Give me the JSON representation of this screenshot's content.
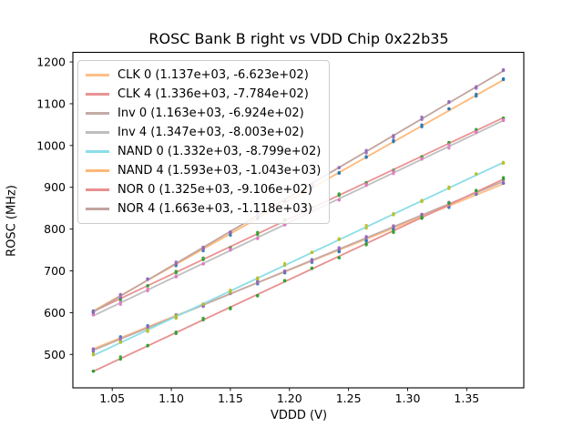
{
  "title": "ROSC Bank B right vs VDD Chip 0x22b35",
  "xlabel": "VDDD (V)",
  "ylabel": "ROSC (MHz)",
  "chart_data": {
    "type": "scatter",
    "title": "ROSC Bank B right vs VDD Chip 0x22b35",
    "xlabel": "VDDD (V)",
    "ylabel": "ROSC (MHz)",
    "xlim": [
      1.0167,
      1.3983
    ],
    "ylim": [
      420,
      1223
    ],
    "x_ticks": [
      1.05,
      1.1,
      1.15,
      1.2,
      1.25,
      1.3,
      1.35
    ],
    "y_ticks": [
      500,
      600,
      700,
      800,
      900,
      1000,
      1100,
      1200
    ],
    "grid": false,
    "legend_position": "upper left",
    "x_values": [
      1.034,
      1.057,
      1.08,
      1.104,
      1.127,
      1.15,
      1.173,
      1.196,
      1.219,
      1.242,
      1.265,
      1.288,
      1.312,
      1.335,
      1.358,
      1.381
    ],
    "fit_model": "y_MHz = slope * VDDD + intercept, scatter points lie on fit with small measurement spread",
    "series": [
      {
        "name": "CLK 0",
        "label": "CLK 0 (1.137e+03, -6.623e+02)",
        "slope": 1137,
        "intercept": -662.3,
        "line_color": "#ffbf86",
        "point_color": "#1f77b4"
      },
      {
        "name": "CLK 4",
        "label": "CLK 4 (1.336e+03, -7.784e+02)",
        "slope": 1336,
        "intercept": -778.4,
        "line_color": "#ea9393",
        "point_color": "#2ca02c"
      },
      {
        "name": "Inv 0",
        "label": "Inv 0 (1.163e+03, -6.924e+02)",
        "slope": 1163,
        "intercept": -692.4,
        "line_color": "#c5aaa5",
        "point_color": "#9467bd"
      },
      {
        "name": "Inv 4",
        "label": "Inv 4 (1.347e+03, -8.003e+02)",
        "slope": 1347,
        "intercept": -800.3,
        "line_color": "#bfbfbf",
        "point_color": "#e377c2"
      },
      {
        "name": "NAND 0",
        "label": "NAND 0 (1.332e+03, -8.799e+02)",
        "slope": 1332,
        "intercept": -879.9,
        "line_color": "#8bdee7",
        "point_color": "#bcbd22"
      },
      {
        "name": "NAND 4",
        "label": "NAND 4 (1.593e+03, -1.043e+03)",
        "slope": 1593,
        "intercept": -1043.0,
        "line_color": "#ffb877",
        "point_color": "#1f77b4"
      },
      {
        "name": "NOR 0",
        "label": "NOR 0 (1.325e+03, -9.106e+02)",
        "slope": 1325,
        "intercept": -910.6,
        "line_color": "#e89090",
        "point_color": "#2ca02c"
      },
      {
        "name": "NOR 4",
        "label": "NOR 4 (1.663e+03, -1.118e+03)",
        "slope": 1663,
        "intercept": -1118.0,
        "line_color": "#c2a49e",
        "point_color": "#9467bd"
      }
    ]
  },
  "axis_color": "#000000",
  "background_color": "#ffffff"
}
